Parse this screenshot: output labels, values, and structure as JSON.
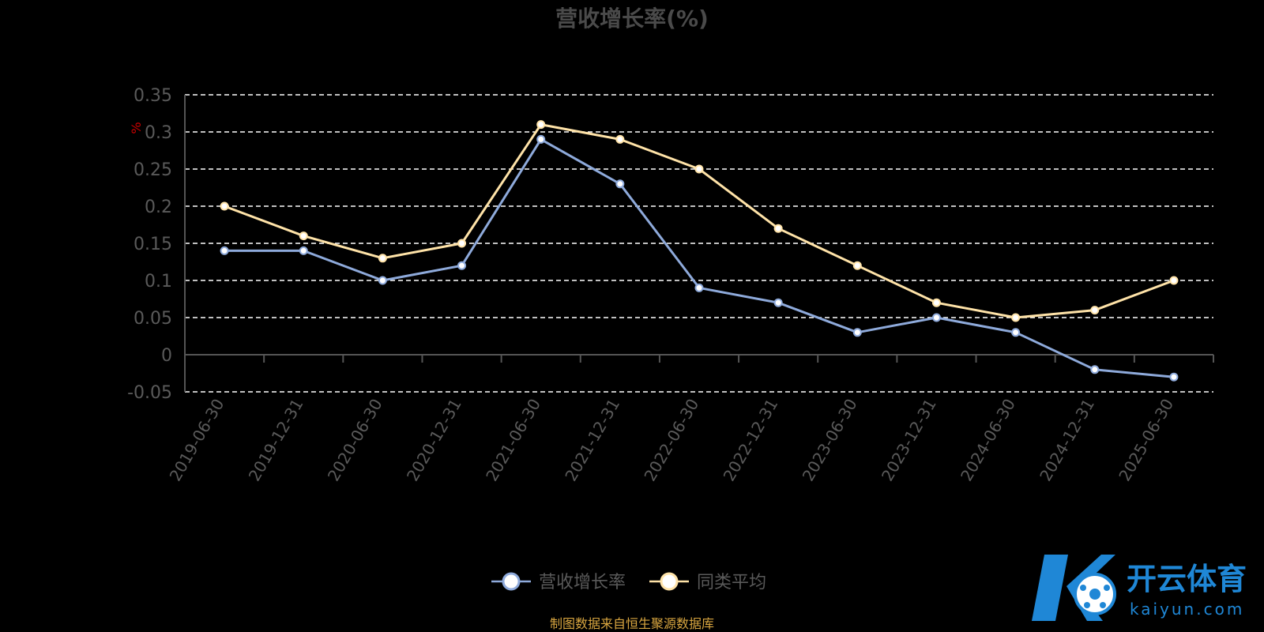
{
  "colors": {
    "series_1": "#8eaadb",
    "series_2": "#ffe3a8",
    "marker_fill": "#ffffff",
    "grid": "#ffffff",
    "unit": "#cc0000",
    "source": "#d9a640",
    "watermark": "#1f87d6"
  },
  "chart_data": {
    "type": "line",
    "title": "营收增长率(%)",
    "ylabel": "%",
    "ylim": [
      -0.05,
      0.35
    ],
    "yticks": [
      "0.35",
      "0.3",
      "0.25",
      "0.2",
      "0.15",
      "0.1",
      "0.05",
      "0",
      "-0.05"
    ],
    "grid": true,
    "legend_position": "bottom-center",
    "categories": [
      "2019-06-30",
      "2019-12-31",
      "2020-06-30",
      "2020-12-31",
      "2021-06-30",
      "2021-12-31",
      "2022-06-30",
      "2022-12-31",
      "2023-06-30",
      "2023-12-31",
      "2024-06-30",
      "2024-12-31",
      "2025-06-30"
    ],
    "series": [
      {
        "name": "营收增长率",
        "values": [
          0.14,
          0.14,
          0.1,
          0.12,
          0.29,
          0.23,
          0.09,
          0.07,
          0.03,
          0.05,
          0.03,
          -0.02,
          -0.03
        ]
      },
      {
        "name": "同类平均",
        "values": [
          0.2,
          0.16,
          0.13,
          0.15,
          0.31,
          0.29,
          0.25,
          0.17,
          0.12,
          0.07,
          0.05,
          0.06,
          0.1
        ]
      }
    ]
  },
  "source": "制图数据来自恒生聚源数据库",
  "watermark": {
    "brand": "开云体育",
    "domain": "kaiyun.com",
    "logo_name": "kaiyun-logo"
  }
}
